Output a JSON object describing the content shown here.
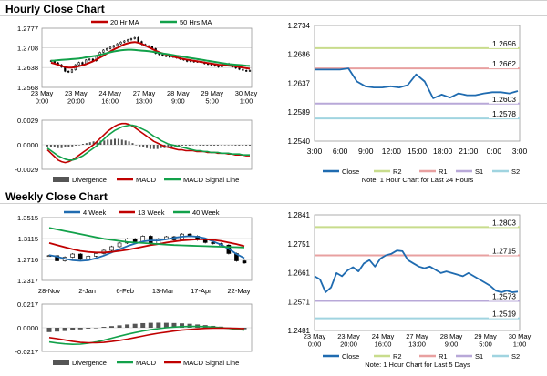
{
  "titles": {
    "hourly": "Hourly Close Chart",
    "weekly": "Weekly Close Chart"
  },
  "colors": {
    "close": "#1f6bb0",
    "ma_short": "#c00000",
    "ma_long": "#12a14a",
    "macd": "#c00000",
    "macd_signal": "#12a14a",
    "divergence": "#555555",
    "r2": "#c8dc8c",
    "r1": "#e8a0a0",
    "s1": "#b8a8d8",
    "s2": "#a0d4e0",
    "grid": "#c8c8c8"
  },
  "chart_data": [
    {
      "id": "hourly-price",
      "type": "line",
      "legend": [
        "20 Hr MA",
        "50 Hrs MA"
      ],
      "ylim": [
        1.2568,
        1.2777
      ],
      "yticks": [
        "1.2777",
        "1.2708",
        "1.2638",
        "1.2568"
      ],
      "xticks": [
        "23 May\n0:00",
        "23 May\n20:00",
        "24 May\n16:00",
        "27 May\n13:00",
        "28 May\n9:00",
        "29 May\n5:00",
        "30 May\n1:00"
      ],
      "candles": [
        1.2662,
        1.2655,
        1.2648,
        1.264,
        1.2625,
        1.2622,
        1.263,
        1.2648,
        1.2656,
        1.265,
        1.2665,
        1.2668,
        1.2662,
        1.268,
        1.2692,
        1.27,
        1.2705,
        1.271,
        1.2716,
        1.2722,
        1.2728,
        1.2732,
        1.2736,
        1.274,
        1.2744,
        1.273,
        1.272,
        1.2715,
        1.2712,
        1.2705,
        1.2688,
        1.2684,
        1.268,
        1.2678,
        1.2675,
        1.2678,
        1.2672,
        1.2668,
        1.2665,
        1.266,
        1.2662,
        1.2658,
        1.266,
        1.2656,
        1.2652,
        1.265,
        1.2648,
        1.2644,
        1.264,
        1.2645,
        1.2652,
        1.2648,
        1.264,
        1.2636,
        1.2632,
        1.2628,
        1.2626,
        1.2628
      ],
      "series": [
        {
          "name": "20 Hr MA",
          "values": [
            1.2655,
            1.2652,
            1.2648,
            1.2644,
            1.264,
            1.2638,
            1.2638,
            1.264,
            1.2643,
            1.2646,
            1.265,
            1.2655,
            1.266,
            1.2666,
            1.2673,
            1.268,
            1.2688,
            1.2695,
            1.2702,
            1.2708,
            1.2714,
            1.272,
            1.2724,
            1.2727,
            1.2728,
            1.2726,
            1.2722,
            1.2716,
            1.271,
            1.2704,
            1.2698,
            1.2692,
            1.2688,
            1.2684,
            1.268,
            1.2677,
            1.2674,
            1.2671,
            1.2668,
            1.2666,
            1.2664,
            1.2662,
            1.266,
            1.2658,
            1.2656,
            1.2654,
            1.2652,
            1.265,
            1.2648,
            1.2647,
            1.2646,
            1.2645,
            1.2644,
            1.2642,
            1.264,
            1.2638,
            1.2636,
            1.2634
          ]
        },
        {
          "name": "50 Hrs MA",
          "values": [
            1.2662,
            1.2663,
            1.2664,
            1.2665,
            1.2666,
            1.2667,
            1.2668,
            1.2669,
            1.267,
            1.2672,
            1.2674,
            1.2676,
            1.2678,
            1.268,
            1.2683,
            1.2686,
            1.2689,
            1.2692,
            1.2695,
            1.2697,
            1.2699,
            1.27,
            1.2701,
            1.2701,
            1.27,
            1.2699,
            1.2698,
            1.2697,
            1.2696,
            1.2694,
            1.2692,
            1.269,
            1.2688,
            1.2686,
            1.2684,
            1.2682,
            1.268,
            1.2678,
            1.2676,
            1.2674,
            1.2672,
            1.267,
            1.2668,
            1.2666,
            1.2664,
            1.2662,
            1.266,
            1.2658,
            1.2656,
            1.2654,
            1.2652,
            1.265,
            1.2649,
            1.2648,
            1.2647,
            1.2646,
            1.2645,
            1.2644
          ]
        }
      ]
    },
    {
      "id": "hourly-macd",
      "type": "bar",
      "legend": [
        "Divergence",
        "MACD",
        "MACD Signal Line"
      ],
      "ylim": [
        -0.0029,
        0.0029
      ],
      "yticks": [
        "0.0029",
        "0.0000",
        "-0.0029"
      ],
      "divergence": [
        -0.0002,
        -0.0003,
        -0.0003,
        -0.0004,
        -0.0004,
        -0.0003,
        -0.0003,
        -0.0002,
        -0.0001,
        0.0,
        0.0001,
        0.0002,
        0.0003,
        0.0004,
        0.0004,
        0.0005,
        0.0005,
        0.0006,
        0.0006,
        0.0007,
        0.0007,
        0.0006,
        0.0005,
        0.0004,
        0.0002,
        0.0,
        -0.0002,
        -0.0003,
        -0.0004,
        -0.0005,
        -0.0005,
        -0.0005,
        -0.0004,
        -0.0004,
        -0.0003,
        -0.0003,
        -0.0002,
        -0.0002,
        -0.0001,
        -0.0001,
        -0.0001,
        0.0,
        0.0,
        -0.0001,
        -0.0001,
        -0.0001,
        -0.0001,
        -0.0001,
        -0.0001,
        0.0,
        0.0,
        0.0,
        -0.0001,
        -0.0001,
        -0.0001,
        -0.0001,
        -0.0001,
        -0.0001
      ],
      "series": [
        {
          "name": "MACD",
          "values": [
            -0.0006,
            -0.001,
            -0.0014,
            -0.0018,
            -0.002,
            -0.0021,
            -0.002,
            -0.0018,
            -0.0015,
            -0.0012,
            -0.0009,
            -0.0006,
            -0.0003,
            0.0,
            0.0004,
            0.0008,
            0.0012,
            0.0016,
            0.0019,
            0.0022,
            0.0024,
            0.0025,
            0.0025,
            0.0024,
            0.0022,
            0.0019,
            0.0016,
            0.0013,
            0.001,
            0.0007,
            0.0004,
            0.0002,
            0.0,
            -0.0002,
            -0.0003,
            -0.0004,
            -0.0005,
            -0.0006,
            -0.0006,
            -0.0007,
            -0.0007,
            -0.0007,
            -0.0008,
            -0.0008,
            -0.0008,
            -0.0009,
            -0.0009,
            -0.0009,
            -0.001,
            -0.001,
            -0.001,
            -0.0011,
            -0.0011,
            -0.0012,
            -0.0012,
            -0.0012,
            -0.0013,
            -0.0013
          ]
        },
        {
          "name": "MACD Signal Line",
          "values": [
            -0.0004,
            -0.0007,
            -0.001,
            -0.0013,
            -0.0015,
            -0.0017,
            -0.0018,
            -0.0018,
            -0.0017,
            -0.0015,
            -0.0013,
            -0.001,
            -0.0007,
            -0.0004,
            -0.0001,
            0.0003,
            0.0007,
            0.0011,
            0.0014,
            0.0017,
            0.0019,
            0.0021,
            0.0022,
            0.0023,
            0.0023,
            0.0022,
            0.002,
            0.0018,
            0.0016,
            0.0013,
            0.001,
            0.0008,
            0.0005,
            0.0003,
            0.0001,
            0.0,
            -0.0001,
            -0.0002,
            -0.0003,
            -0.0004,
            -0.0005,
            -0.0006,
            -0.0007,
            -0.0007,
            -0.0008,
            -0.0008,
            -0.0009,
            -0.0009,
            -0.0009,
            -0.001,
            -0.001,
            -0.001,
            -0.0011,
            -0.0011,
            -0.0011,
            -0.0012,
            -0.0012,
            -0.0012
          ]
        }
      ]
    },
    {
      "id": "hourly-close-24h",
      "type": "line",
      "ylim": [
        1.254,
        1.2734
      ],
      "yticks": [
        "1.2734",
        "1.2686",
        "1.2637",
        "1.2589",
        "1.2540"
      ],
      "xticks": [
        "3:00",
        "6:00",
        "9:00",
        "12:00",
        "15:00",
        "18:00",
        "21:00",
        "0:00",
        "3:00"
      ],
      "x_span_hours": 24,
      "levels": [
        {
          "name": "R2",
          "value": 1.2696,
          "label": "1.2696"
        },
        {
          "name": "R1",
          "value": 1.2662,
          "label": "1.2662"
        },
        {
          "name": "S1",
          "value": 1.2603,
          "label": "1.2603"
        },
        {
          "name": "S2",
          "value": 1.2578,
          "label": "1.2578"
        }
      ],
      "legend": [
        "Close",
        "R2",
        "R1",
        "S1",
        "S2"
      ],
      "note": "Note: 1 Hour Chart for Last 24 Hours",
      "series": [
        {
          "name": "Close",
          "values": [
            1.266,
            1.266,
            1.266,
            1.266,
            1.2662,
            1.264,
            1.2632,
            1.263,
            1.263,
            1.2632,
            1.263,
            1.2634,
            1.2652,
            1.264,
            1.2612,
            1.2618,
            1.2613,
            1.262,
            1.2617,
            1.2617,
            1.262,
            1.2622,
            1.2622,
            1.262,
            1.2624
          ]
        }
      ]
    },
    {
      "id": "weekly-price",
      "type": "line",
      "legend": [
        "4 Week",
        "13 Week",
        "40 Week"
      ],
      "ylim": [
        1.2317,
        1.3515
      ],
      "yticks": [
        "1.3515",
        "1.3115",
        "1.2716",
        "1.2317"
      ],
      "xticks": [
        "28-Nov",
        "2-Jan",
        "6-Feb",
        "13-Mar",
        "17-Apr",
        "22-May"
      ],
      "candles": [
        1.279,
        1.269,
        1.276,
        1.282,
        1.272,
        1.278,
        1.283,
        1.289,
        1.296,
        1.303,
        1.311,
        1.306,
        1.316,
        1.302,
        1.311,
        1.315,
        1.309,
        1.32,
        1.316,
        1.309,
        1.304,
        1.302,
        1.299,
        1.283,
        1.269,
        1.265
      ],
      "series": [
        {
          "name": "4 Week",
          "values": [
            1.28,
            1.277,
            1.273,
            1.27,
            1.269,
            1.27,
            1.274,
            1.279,
            1.285,
            1.291,
            1.297,
            1.302,
            1.306,
            1.308,
            1.308,
            1.31,
            1.313,
            1.315,
            1.316,
            1.315,
            1.312,
            1.306,
            1.3,
            1.292,
            1.282,
            1.274
          ]
        },
        {
          "name": "13 Week",
          "values": [
            1.303,
            1.299,
            1.295,
            1.291,
            1.288,
            1.286,
            1.285,
            1.285,
            1.286,
            1.288,
            1.29,
            1.293,
            1.296,
            1.299,
            1.301,
            1.304,
            1.306,
            1.308,
            1.309,
            1.31,
            1.31,
            1.309,
            1.307,
            1.304,
            1.301,
            1.297
          ]
        },
        {
          "name": "40 Week",
          "values": [
            1.332,
            1.329,
            1.326,
            1.323,
            1.32,
            1.317,
            1.314,
            1.311,
            1.309,
            1.307,
            1.305,
            1.304,
            1.303,
            1.302,
            1.301,
            1.3,
            1.299,
            1.2985,
            1.298,
            1.2975,
            1.297,
            1.2965,
            1.296,
            1.2955,
            1.295,
            1.2945
          ]
        }
      ]
    },
    {
      "id": "weekly-macd",
      "type": "bar",
      "legend": [
        "Divergence",
        "MACD",
        "MACD Signal Line"
      ],
      "ylim": [
        -0.0217,
        0.0217
      ],
      "yticks": [
        "0.0217",
        "0.0000",
        "-0.0217"
      ],
      "divergence": [
        -0.004,
        -0.0035,
        -0.003,
        -0.0022,
        -0.0015,
        -0.0008,
        0.0,
        0.0008,
        0.0015,
        0.0022,
        0.003,
        0.0036,
        0.0042,
        0.0045,
        0.0046,
        0.0045,
        0.0043,
        0.004,
        0.0036,
        0.003,
        0.0024,
        0.0017,
        0.001,
        0.0002,
        -0.0006,
        -0.0014
      ],
      "series": [
        {
          "name": "MACD",
          "values": [
            -0.013,
            -0.014,
            -0.0148,
            -0.0152,
            -0.015,
            -0.0142,
            -0.013,
            -0.0114,
            -0.0096,
            -0.0078,
            -0.006,
            -0.0044,
            -0.003,
            -0.0018,
            -0.0008,
            0.0,
            0.0006,
            0.001,
            0.0012,
            0.0012,
            0.001,
            0.0006,
            0.0001,
            -0.0006,
            -0.0014,
            -0.0022
          ]
        },
        {
          "name": "MACD Signal Line",
          "values": [
            -0.009,
            -0.01,
            -0.0112,
            -0.0124,
            -0.0134,
            -0.0138,
            -0.0138,
            -0.0134,
            -0.0126,
            -0.0116,
            -0.0104,
            -0.009,
            -0.0076,
            -0.0062,
            -0.005,
            -0.004,
            -0.003,
            -0.0022,
            -0.0016,
            -0.001,
            -0.0006,
            -0.0004,
            -0.0003,
            -0.0004,
            -0.0006,
            -0.0008
          ]
        }
      ]
    },
    {
      "id": "weekly-close-hourly",
      "type": "line",
      "ylim": [
        1.2481,
        1.2841
      ],
      "yticks": [
        "1.2841",
        "1.2751",
        "1.2661",
        "1.2571",
        "1.2481"
      ],
      "xticks": [
        "23 May\n0:00",
        "23 May\n20:00",
        "24 May\n16:00",
        "27 May\n13:00",
        "28 May\n9:00",
        "29 May\n5:00",
        "30 May\n1:00"
      ],
      "levels": [
        {
          "name": "R2",
          "value": 1.2803,
          "label": "1.2803"
        },
        {
          "name": "R1",
          "value": 1.2715,
          "label": "1.2715"
        },
        {
          "name": "S1",
          "value": 1.2573,
          "label": "1.2573"
        },
        {
          "name": "S2",
          "value": 1.2519,
          "label": "1.2519"
        }
      ],
      "legend": [
        "Close",
        "R2",
        "R1",
        "S1",
        "S2"
      ],
      "note": "Note: 1 Hour Chart for Last 5 Days",
      "series": [
        {
          "name": "Close",
          "values": [
            1.265,
            1.264,
            1.26,
            1.2615,
            1.266,
            1.265,
            1.2668,
            1.2678,
            1.2665,
            1.269,
            1.27,
            1.268,
            1.2705,
            1.2715,
            1.272,
            1.273,
            1.2728,
            1.27,
            1.269,
            1.268,
            1.2675,
            1.268,
            1.267,
            1.266,
            1.2665,
            1.266,
            1.2655,
            1.265,
            1.266,
            1.265,
            1.264,
            1.263,
            1.262,
            1.2605,
            1.26,
            1.2605,
            1.26,
            1.2602
          ]
        }
      ]
    }
  ]
}
